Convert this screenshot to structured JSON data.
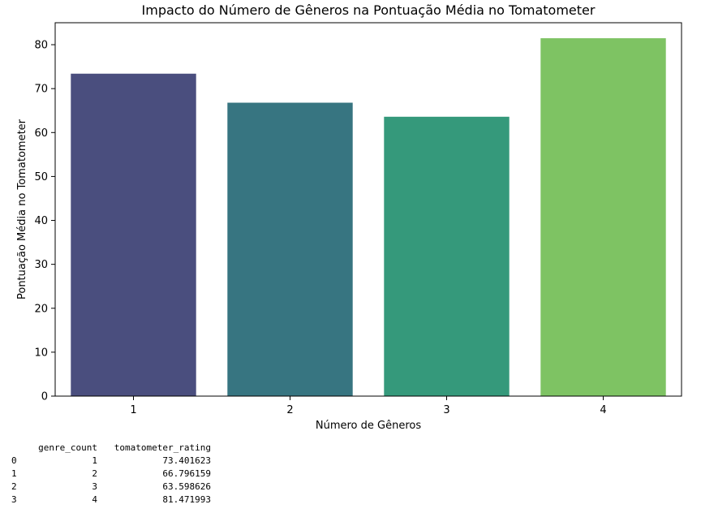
{
  "chart_data": {
    "type": "bar",
    "title": "Impacto do Número de Gêneros na Pontuação Média no Tomatometer",
    "xlabel": "Número de Gêneros",
    "ylabel": "Pontuação Média no Tomatometer",
    "categories": [
      "1",
      "2",
      "3",
      "4"
    ],
    "values": [
      73.401623,
      66.796159,
      63.598626,
      81.471993
    ],
    "colors": [
      "#4a4e7e",
      "#377581",
      "#35997b",
      "#7ec363"
    ],
    "ylim": [
      0,
      85
    ],
    "yticks": [
      0,
      10,
      20,
      30,
      40,
      50,
      60,
      70,
      80
    ],
    "grid": false,
    "legend": "none"
  },
  "dataframe": {
    "columns": [
      "genre_count",
      "tomatometer_rating"
    ],
    "rows": [
      {
        "index": "0",
        "genre_count": "1",
        "tomatometer_rating": "73.401623"
      },
      {
        "index": "1",
        "genre_count": "2",
        "tomatometer_rating": "66.796159"
      },
      {
        "index": "2",
        "genre_count": "3",
        "tomatometer_rating": "63.598626"
      },
      {
        "index": "3",
        "genre_count": "4",
        "tomatometer_rating": "81.471993"
      }
    ]
  }
}
